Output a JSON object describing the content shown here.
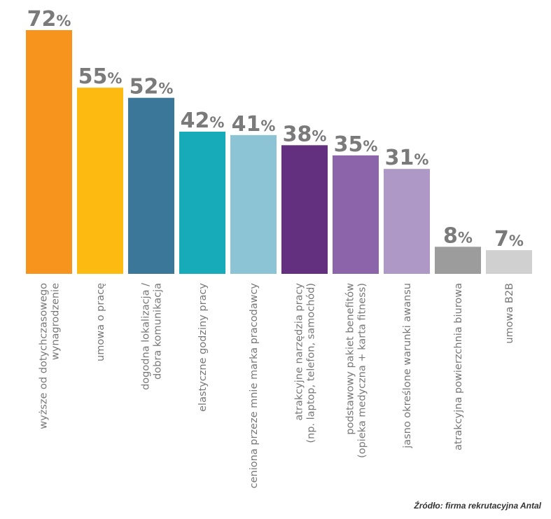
{
  "chart_data": {
    "type": "bar",
    "title": "",
    "xlabel": "",
    "ylabel": "",
    "ylim": [
      0,
      72
    ],
    "value_suffix": "%",
    "categories": [
      [
        "wyższe od dotychczasowego",
        "wynagrodzenie"
      ],
      [
        "umowa o pracę"
      ],
      [
        "dogodna lokalizacja /",
        "dobra komunikacja"
      ],
      [
        "elastyczne godziny pracy"
      ],
      [
        "ceniona przeze mnie marka pracodawcy"
      ],
      [
        "atrakcyjne narzędzia pracy",
        "(np. laptop, telefon, samochód)"
      ],
      [
        "podstawowy pakiet benefitów",
        "(opieka medyczna + karta fitness)"
      ],
      [
        "jasno określone warunki awansu"
      ],
      [
        "atrakcyjna powierzchnia biurowa"
      ],
      [
        "umowa B2B"
      ]
    ],
    "values": [
      72,
      55,
      52,
      42,
      41,
      38,
      35,
      31,
      8,
      7
    ],
    "colors": [
      "#f7941d",
      "#fdbb12",
      "#3a7799",
      "#17aab9",
      "#8cc3d5",
      "#62307f",
      "#8c64a9",
      "#ad98c6",
      "#9c9c9c",
      "#d0d0d0"
    ],
    "grid": false,
    "legend": "none"
  },
  "source": "Źródło: firma rekrutacyjna Antal"
}
